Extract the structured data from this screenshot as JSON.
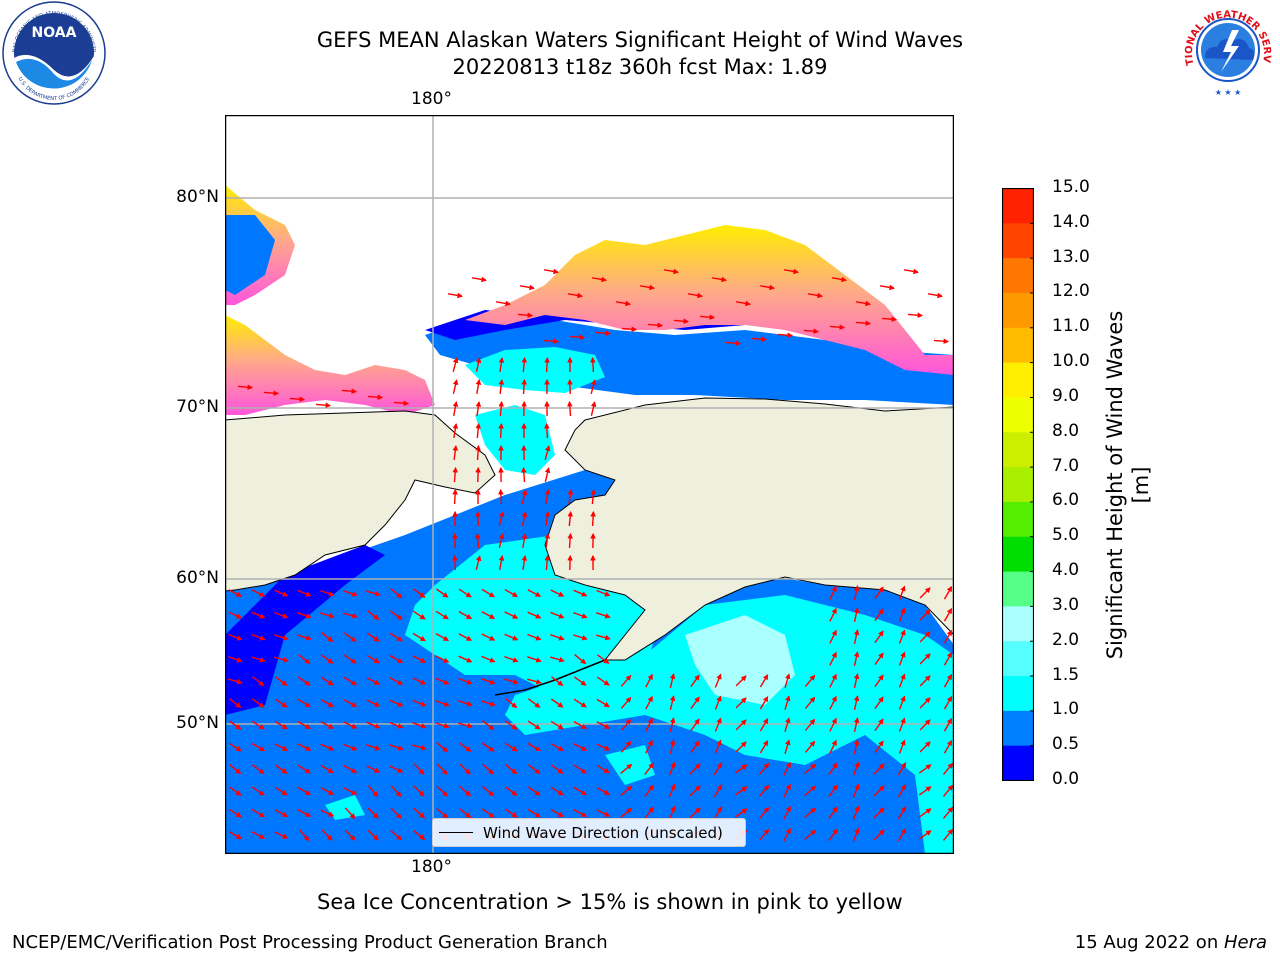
{
  "title": {
    "line1": "GEFS MEAN Alaskan Waters Significant Height of Wind Waves",
    "line2": "20220813 t18z 360h fcst   Max: 1.89"
  },
  "logos": {
    "noaa_text": "NOAA",
    "noaa_ring_top": "NATIONAL OCEANIC AND ATMOSPHERIC ADMINISTRATION",
    "noaa_ring_bottom": "U.S. DEPARTMENT OF COMMERCE",
    "nws_ring": "NATIONAL WEATHER SERVICE"
  },
  "map": {
    "lon_label_top": "180°",
    "lon_label_bottom": "180°",
    "lat_labels": [
      "80°N",
      "70°N",
      "60°N",
      "50°N"
    ],
    "legend": "Wind Wave Direction (unscaled)",
    "colors": {
      "land": "#efefde",
      "ocean_low": "#0077ff",
      "ocean_mid": "#00ffff",
      "ocean_deep": "#0000ff",
      "ice_pink": "#ff66dd",
      "ice_yellow": "#ffee00",
      "arrow": "#ff0000"
    }
  },
  "colorbar": {
    "ticks": [
      "15.0",
      "14.0",
      "13.0",
      "12.0",
      "11.0",
      "10.0",
      "9.0",
      "8.0",
      "7.0",
      "6.0",
      "5.0",
      "4.0",
      "3.0",
      "2.0",
      "1.5",
      "1.0",
      "0.5",
      "0.0"
    ],
    "colors": [
      "#0000ff",
      "#0080ff",
      "#00ffff",
      "#55ffff",
      "#aaffff",
      "#55ff88",
      "#00dd00",
      "#55ee00",
      "#aaee00",
      "#ccee00",
      "#eeff00",
      "#ffee00",
      "#ffbb00",
      "#ff9900",
      "#ff7700",
      "#ff4400",
      "#ff2200"
    ],
    "label": "Significant Height of Wind Waves [m]"
  },
  "footer": {
    "ice_note": "Sea Ice Concentration > 15% is shown in pink to yellow",
    "left": "NCEP/EMC/Verification Post Processing Product Generation Branch",
    "right_date": "15 Aug 2022 on ",
    "right_host": "Hera"
  }
}
